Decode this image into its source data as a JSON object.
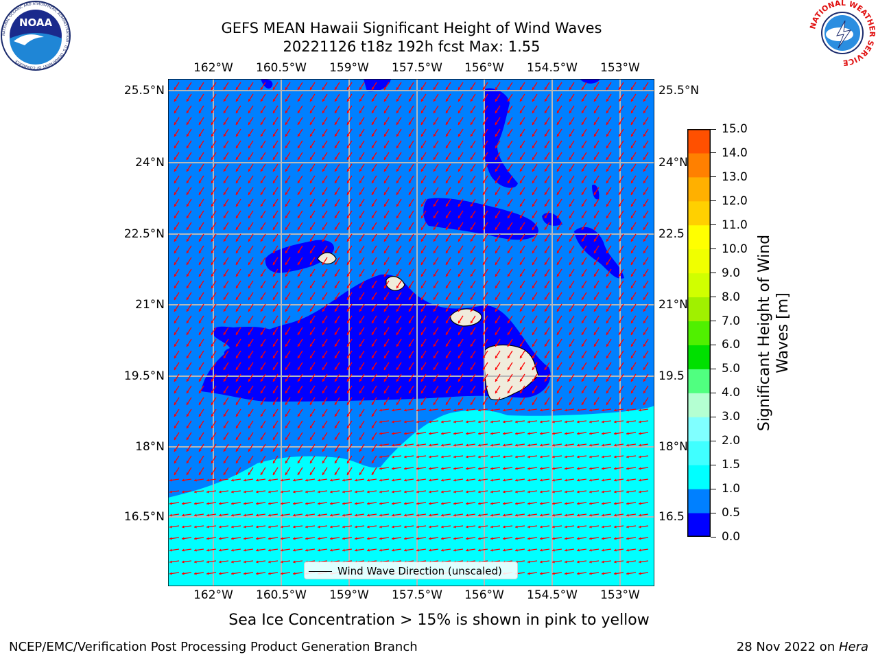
{
  "title": {
    "line1": "GEFS MEAN Hawaii Significant Height of Wind Waves",
    "line2": "20221126 t18z 192h fcst   Max: 1.55"
  },
  "map": {
    "lon_ticks": [
      "162°W",
      "160.5°W",
      "159°W",
      "157.5°W",
      "156°W",
      "154.5°W",
      "153°W"
    ],
    "lat_ticks_left": [
      "25.5°N",
      "24°N",
      "22.5°N",
      "21°N",
      "19.5°N",
      "18°N",
      "16.5°N"
    ],
    "lat_ticks_right": [
      "25.5°N",
      "24°N",
      "22.5",
      "21°N",
      "19.5",
      "18°N",
      "16.5"
    ],
    "ocean_colors": {
      "deep": "#0000ff",
      "mid": "#0080ff",
      "light": "#00ffff",
      "land": "#f0ecdc",
      "vector": "#ff0000"
    },
    "legend_label": "Wind Wave Direction (unscaled)"
  },
  "colorbar": {
    "label": "Significant Height of Wind Waves [m]",
    "ticks": [
      "0.0",
      "0.5",
      "1.0",
      "1.5",
      "2.0",
      "3.0",
      "4.0",
      "5.0",
      "6.0",
      "7.0",
      "8.0",
      "9.0",
      "10.0",
      "11.0",
      "12.0",
      "13.0",
      "14.0",
      "15.0"
    ],
    "colors": [
      "#0000ff",
      "#0080ff",
      "#00ffff",
      "#40ffff",
      "#80ffff",
      "#b4ffd2",
      "#50ff80",
      "#00e000",
      "#50f000",
      "#a0f000",
      "#d0ff00",
      "#f0ff00",
      "#ffff00",
      "#ffd000",
      "#ffb000",
      "#ff8000",
      "#ff5000",
      "#ff2000",
      "#ff0000"
    ]
  },
  "caption": "Sea Ice Concentration > 15% is shown in pink to yellow",
  "footer": {
    "left": "NCEP/EMC/Verification Post Processing Product Generation Branch",
    "right_date": "28 Nov 2022 on ",
    "right_machine": "Hera"
  },
  "logos": {
    "left_text": "NOAA",
    "left_ring": "NATIONAL OCEANIC AND ATMOSPHERIC ADMINISTRATION · U.S. DEPARTMENT OF COMMERCE",
    "right_ring": "NATIONAL WEATHER SERVICE"
  }
}
